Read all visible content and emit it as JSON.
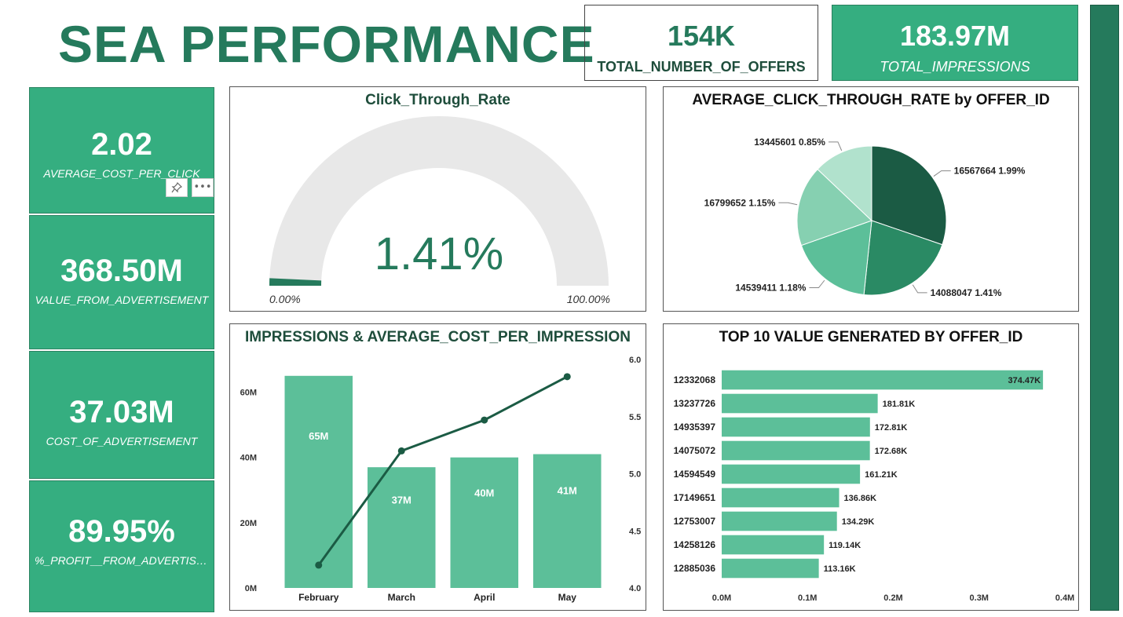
{
  "page": {
    "title": "SEA PERFORMANCE"
  },
  "top_kpis": {
    "offers": {
      "value": "154K",
      "label": "TOTAL_NUMBER_OF_OFFERS"
    },
    "impressions": {
      "value": "183.97M",
      "label": "TOTAL_IMPRESSIONS"
    }
  },
  "left_kpis": [
    {
      "value": "2.02",
      "label": "AVERAGE_COST_PER_CLICK"
    },
    {
      "value": "368.50M",
      "label": "VALUE_FROM_ADVERTISEMENT"
    },
    {
      "value": "37.03M",
      "label": "COST_OF_ADVERTISEMENT"
    },
    {
      "value": "89.95%",
      "label": "%_PROFIT__FROM_ADVERTISME..."
    }
  ],
  "visual_header": {
    "pin_icon": "pin-icon",
    "more_icon": "more-options-icon",
    "more_label": "•••"
  },
  "colors": {
    "brand": "#257a5c",
    "accent": "#35ae80",
    "bar": "#5cbf99",
    "line": "#1b5b44"
  },
  "chart_data": [
    {
      "type": "gauge",
      "title": "Click_Through_Rate",
      "value": 1.41,
      "value_label": "1.41%",
      "min": 0,
      "max": 100,
      "min_label": "0.00%",
      "max_label": "100.00%"
    },
    {
      "type": "pie",
      "title": "AVERAGE_CLICK_THROUGH_RATE by OFFER_ID",
      "slices": [
        {
          "label": "16567664",
          "value": 1.99,
          "value_label": "1.99%",
          "color": "#1b5b44"
        },
        {
          "label": "14088047",
          "value": 1.41,
          "value_label": "1.41%",
          "color": "#2a8a64"
        },
        {
          "label": "14539411",
          "value": 1.18,
          "value_label": "1.18%",
          "color": "#5cbf99"
        },
        {
          "label": "16799652",
          "value": 1.15,
          "value_label": "1.15%",
          "color": "#86d0b1"
        },
        {
          "label": "13445601",
          "value": 0.85,
          "value_label": "0.85%",
          "color": "#b1e2cd"
        }
      ]
    },
    {
      "type": "bar",
      "title": "IMPRESSIONS & AVERAGE_COST_PER_IMPRESSION",
      "categories": [
        "February",
        "March",
        "April",
        "May"
      ],
      "series": [
        {
          "values": [
            65,
            37,
            40,
            41
          ],
          "value_labels": [
            "65M",
            "37M",
            "40M",
            "41M"
          ],
          "axis": "left"
        },
        {
          "type": "line",
          "values": [
            4.2,
            5.2,
            5.47,
            5.85
          ],
          "axis": "right"
        }
      ],
      "y_ticks": [
        "0M",
        "20M",
        "40M",
        "60M"
      ],
      "ylim": [
        0,
        70
      ],
      "y2_ticks": [
        "4.0",
        "4.5",
        "5.0",
        "5.5",
        "6.0"
      ],
      "y2lim": [
        4.0,
        6.0
      ]
    },
    {
      "type": "bar",
      "orientation": "horizontal",
      "title": "TOP 10 VALUE GENERATED BY OFFER_ID",
      "categories": [
        "12332068",
        "13237726",
        "14935397",
        "14075072",
        "14594549",
        "17149651",
        "12753007",
        "14258126",
        "12885036"
      ],
      "values": [
        374.47,
        181.81,
        172.81,
        172.68,
        161.21,
        136.86,
        134.29,
        119.14,
        113.16
      ],
      "value_labels": [
        "374.47K",
        "181.81K",
        "172.81K",
        "172.68K",
        "161.21K",
        "136.86K",
        "134.29K",
        "119.14K",
        "113.16K"
      ],
      "x_ticks": [
        "0.0M",
        "0.1M",
        "0.2M",
        "0.3M",
        "0.4M"
      ],
      "xlim": [
        0,
        400
      ]
    }
  ]
}
